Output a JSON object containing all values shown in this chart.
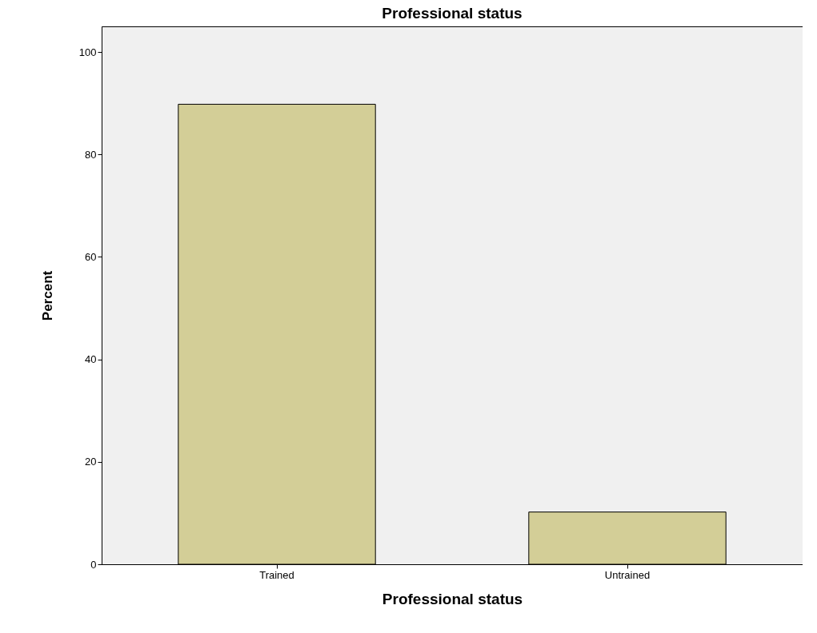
{
  "chart_data": {
    "type": "bar",
    "title": "Professional status",
    "xlabel": "Professional status",
    "ylabel": "Percent",
    "categories": [
      "Trained",
      "Untrained"
    ],
    "values": [
      89.8,
      10.2
    ],
    "color": "#d3ce97",
    "ylim": [
      0,
      105
    ],
    "yticks": [
      0,
      20,
      40,
      60,
      80,
      100
    ],
    "grid": false
  }
}
